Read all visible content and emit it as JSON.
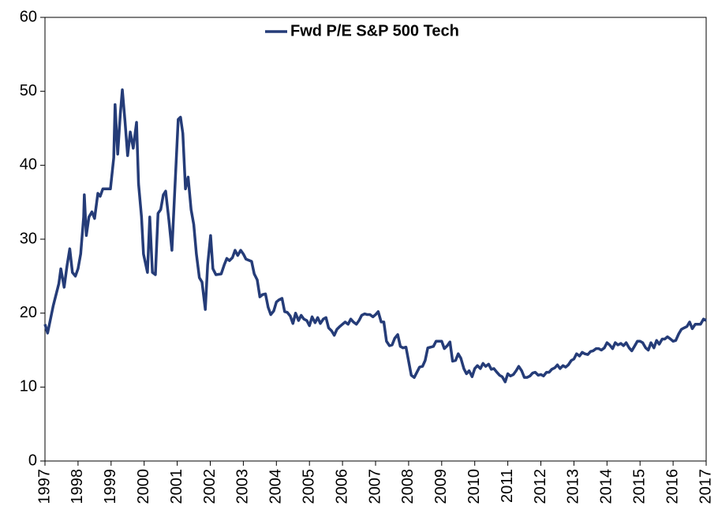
{
  "chart_data": {
    "type": "line",
    "x": [
      1997.0,
      1997.08,
      1997.25,
      1997.42,
      1997.48,
      1997.58,
      1997.67,
      1997.75,
      1997.83,
      1997.92,
      1998.0,
      1998.08,
      1998.17,
      1998.19,
      1998.25,
      1998.33,
      1998.42,
      1998.5,
      1998.6,
      1998.67,
      1998.75,
      1998.98,
      1999.08,
      1999.12,
      1999.2,
      1999.28,
      1999.34,
      1999.42,
      1999.5,
      1999.58,
      1999.67,
      1999.77,
      1999.83,
      1999.92,
      1999.98,
      2000.1,
      2000.17,
      2000.25,
      2000.34,
      2000.42,
      2000.5,
      2000.58,
      2000.65,
      2000.75,
      2000.84,
      2000.92,
      2001.03,
      2001.1,
      2001.17,
      2001.25,
      2001.33,
      2001.42,
      2001.5,
      2001.58,
      2001.67,
      2001.75,
      2001.85,
      2001.92,
      2002.01,
      2002.08,
      2002.17,
      2002.33,
      2002.42,
      2002.5,
      2002.58,
      2002.67,
      2002.75,
      2002.83,
      2002.92,
      2003.0,
      2003.08,
      2003.25,
      2003.33,
      2003.42,
      2003.5,
      2003.58,
      2003.67,
      2003.75,
      2003.83,
      2003.92,
      2004.0,
      2004.08,
      2004.17,
      2004.25,
      2004.33,
      2004.42,
      2004.5,
      2004.58,
      2004.67,
      2004.75,
      2004.83,
      2004.92,
      2005.0,
      2005.08,
      2005.17,
      2005.25,
      2005.33,
      2005.42,
      2005.5,
      2005.58,
      2005.67,
      2005.75,
      2005.83,
      2005.92,
      2006.0,
      2006.08,
      2006.17,
      2006.25,
      2006.33,
      2006.42,
      2006.5,
      2006.58,
      2006.67,
      2006.75,
      2006.83,
      2006.92,
      2007.0,
      2007.08,
      2007.17,
      2007.25,
      2007.33,
      2007.42,
      2007.5,
      2007.58,
      2007.67,
      2007.75,
      2007.83,
      2007.92,
      2008.0,
      2008.08,
      2008.17,
      2008.25,
      2008.33,
      2008.42,
      2008.5,
      2008.58,
      2008.67,
      2008.75,
      2008.83,
      2008.92,
      2009.0,
      2009.08,
      2009.17,
      2009.25,
      2009.33,
      2009.42,
      2009.5,
      2009.58,
      2009.67,
      2009.75,
      2009.83,
      2009.92,
      2010.0,
      2010.08,
      2010.17,
      2010.25,
      2010.33,
      2010.42,
      2010.5,
      2010.58,
      2010.67,
      2010.75,
      2010.83,
      2010.92,
      2011.0,
      2011.08,
      2011.17,
      2011.25,
      2011.33,
      2011.42,
      2011.5,
      2011.58,
      2011.67,
      2011.75,
      2011.83,
      2011.92,
      2012.0,
      2012.08,
      2012.17,
      2012.25,
      2012.33,
      2012.42,
      2012.5,
      2012.58,
      2012.67,
      2012.75,
      2012.83,
      2012.92,
      2013.0,
      2013.08,
      2013.17,
      2013.25,
      2013.33,
      2013.42,
      2013.5,
      2013.58,
      2013.67,
      2013.75,
      2013.83,
      2013.92,
      2014.0,
      2014.08,
      2014.17,
      2014.25,
      2014.33,
      2014.42,
      2014.5,
      2014.58,
      2014.67,
      2014.75,
      2014.83,
      2014.92,
      2015.0,
      2015.08,
      2015.17,
      2015.25,
      2015.33,
      2015.42,
      2015.5,
      2015.58,
      2015.67,
      2015.75,
      2015.83,
      2015.92,
      2016.0,
      2016.08,
      2016.17,
      2016.25,
      2016.33,
      2016.42,
      2016.5,
      2016.58,
      2016.67,
      2016.75,
      2016.83,
      2016.92,
      2017.0
    ],
    "series": [
      {
        "name": "Fwd P/E S&P 500 Tech",
        "color": "#253c78",
        "values": [
          18.5,
          17.3,
          21,
          24,
          26,
          23.5,
          26.5,
          28.7,
          25.5,
          25,
          26,
          28,
          33,
          36,
          30.5,
          33,
          33.7,
          32.8,
          36.2,
          35.8,
          36.8,
          36.8,
          41,
          48.2,
          41.5,
          47,
          50.2,
          46,
          41.3,
          44.5,
          42.3,
          45.8,
          37.5,
          33,
          28,
          25.5,
          33,
          25.5,
          25.2,
          33.5,
          34,
          36,
          36.5,
          32.5,
          28.5,
          36,
          46.2,
          46.5,
          44.3,
          36.8,
          38.4,
          34,
          32,
          28,
          24.8,
          24.2,
          20.5,
          26.5,
          30.5,
          26,
          25.2,
          25.3,
          26.5,
          27.4,
          27.1,
          27.5,
          28.5,
          27.8,
          28.5,
          28,
          27.3,
          27,
          25.3,
          24.5,
          22.2,
          22.5,
          22.6,
          20.8,
          19.8,
          20.3,
          21.5,
          21.8,
          22,
          20.2,
          20.1,
          19.6,
          18.6,
          20,
          19,
          19.7,
          19.2,
          19,
          18.3,
          19.5,
          18.7,
          19.4,
          18.6,
          19.2,
          19.4,
          18,
          17.6,
          17,
          17.8,
          18.2,
          18.5,
          18.8,
          18.5,
          19.2,
          18.8,
          18.5,
          19,
          19.7,
          19.9,
          19.8,
          19.8,
          19.5,
          19.8,
          20.2,
          18.8,
          18.8,
          16.2,
          15.6,
          15.7,
          16.6,
          17.1,
          15.5,
          15.3,
          15.4,
          13.5,
          11.6,
          11.3,
          12,
          12.7,
          12.8,
          13.6,
          15.3,
          15.4,
          15.5,
          16.2,
          16.2,
          16.2,
          15.2,
          15.6,
          16.1,
          13.5,
          13.6,
          14.5,
          13.9,
          12.5,
          11.8,
          12.2,
          11.4,
          12.5,
          12.9,
          12.5,
          13.2,
          12.8,
          13.1,
          12.4,
          12.5,
          12,
          11.6,
          11.4,
          10.7,
          11.8,
          11.5,
          11.7,
          12.2,
          12.8,
          12.2,
          11.3,
          11.3,
          11.5,
          11.9,
          12,
          11.6,
          11.7,
          11.5,
          12,
          12,
          12.4,
          12.6,
          13,
          12.5,
          12.9,
          12.7,
          13,
          13.6,
          13.8,
          14.5,
          14.2,
          14.7,
          14.5,
          14.4,
          14.8,
          14.9,
          15.2,
          15.2,
          15,
          15.3,
          16,
          15.7,
          15.2,
          16,
          15.7,
          15.9,
          15.6,
          16,
          15.3,
          14.9,
          15.5,
          16.2,
          16.2,
          16,
          15.3,
          15,
          16,
          15.3,
          16.3,
          15.8,
          16.5,
          16.5,
          16.8,
          16.5,
          16.2,
          16.3,
          17.2,
          17.8,
          18,
          18.2,
          18.8,
          17.9,
          18.5,
          18.5,
          18.5,
          19.2,
          19
        ]
      }
    ],
    "xlim": [
      1997,
      2017
    ],
    "xticks": [
      1997,
      1998,
      1999,
      2000,
      2001,
      2002,
      2003,
      2004,
      2005,
      2006,
      2007,
      2008,
      2009,
      2010,
      2011,
      2012,
      2013,
      2014,
      2015,
      2016,
      2017
    ],
    "ylim": [
      0,
      60
    ],
    "yticks": [
      0,
      10,
      20,
      30,
      40,
      50,
      60
    ],
    "grid": false,
    "legend": "top"
  }
}
